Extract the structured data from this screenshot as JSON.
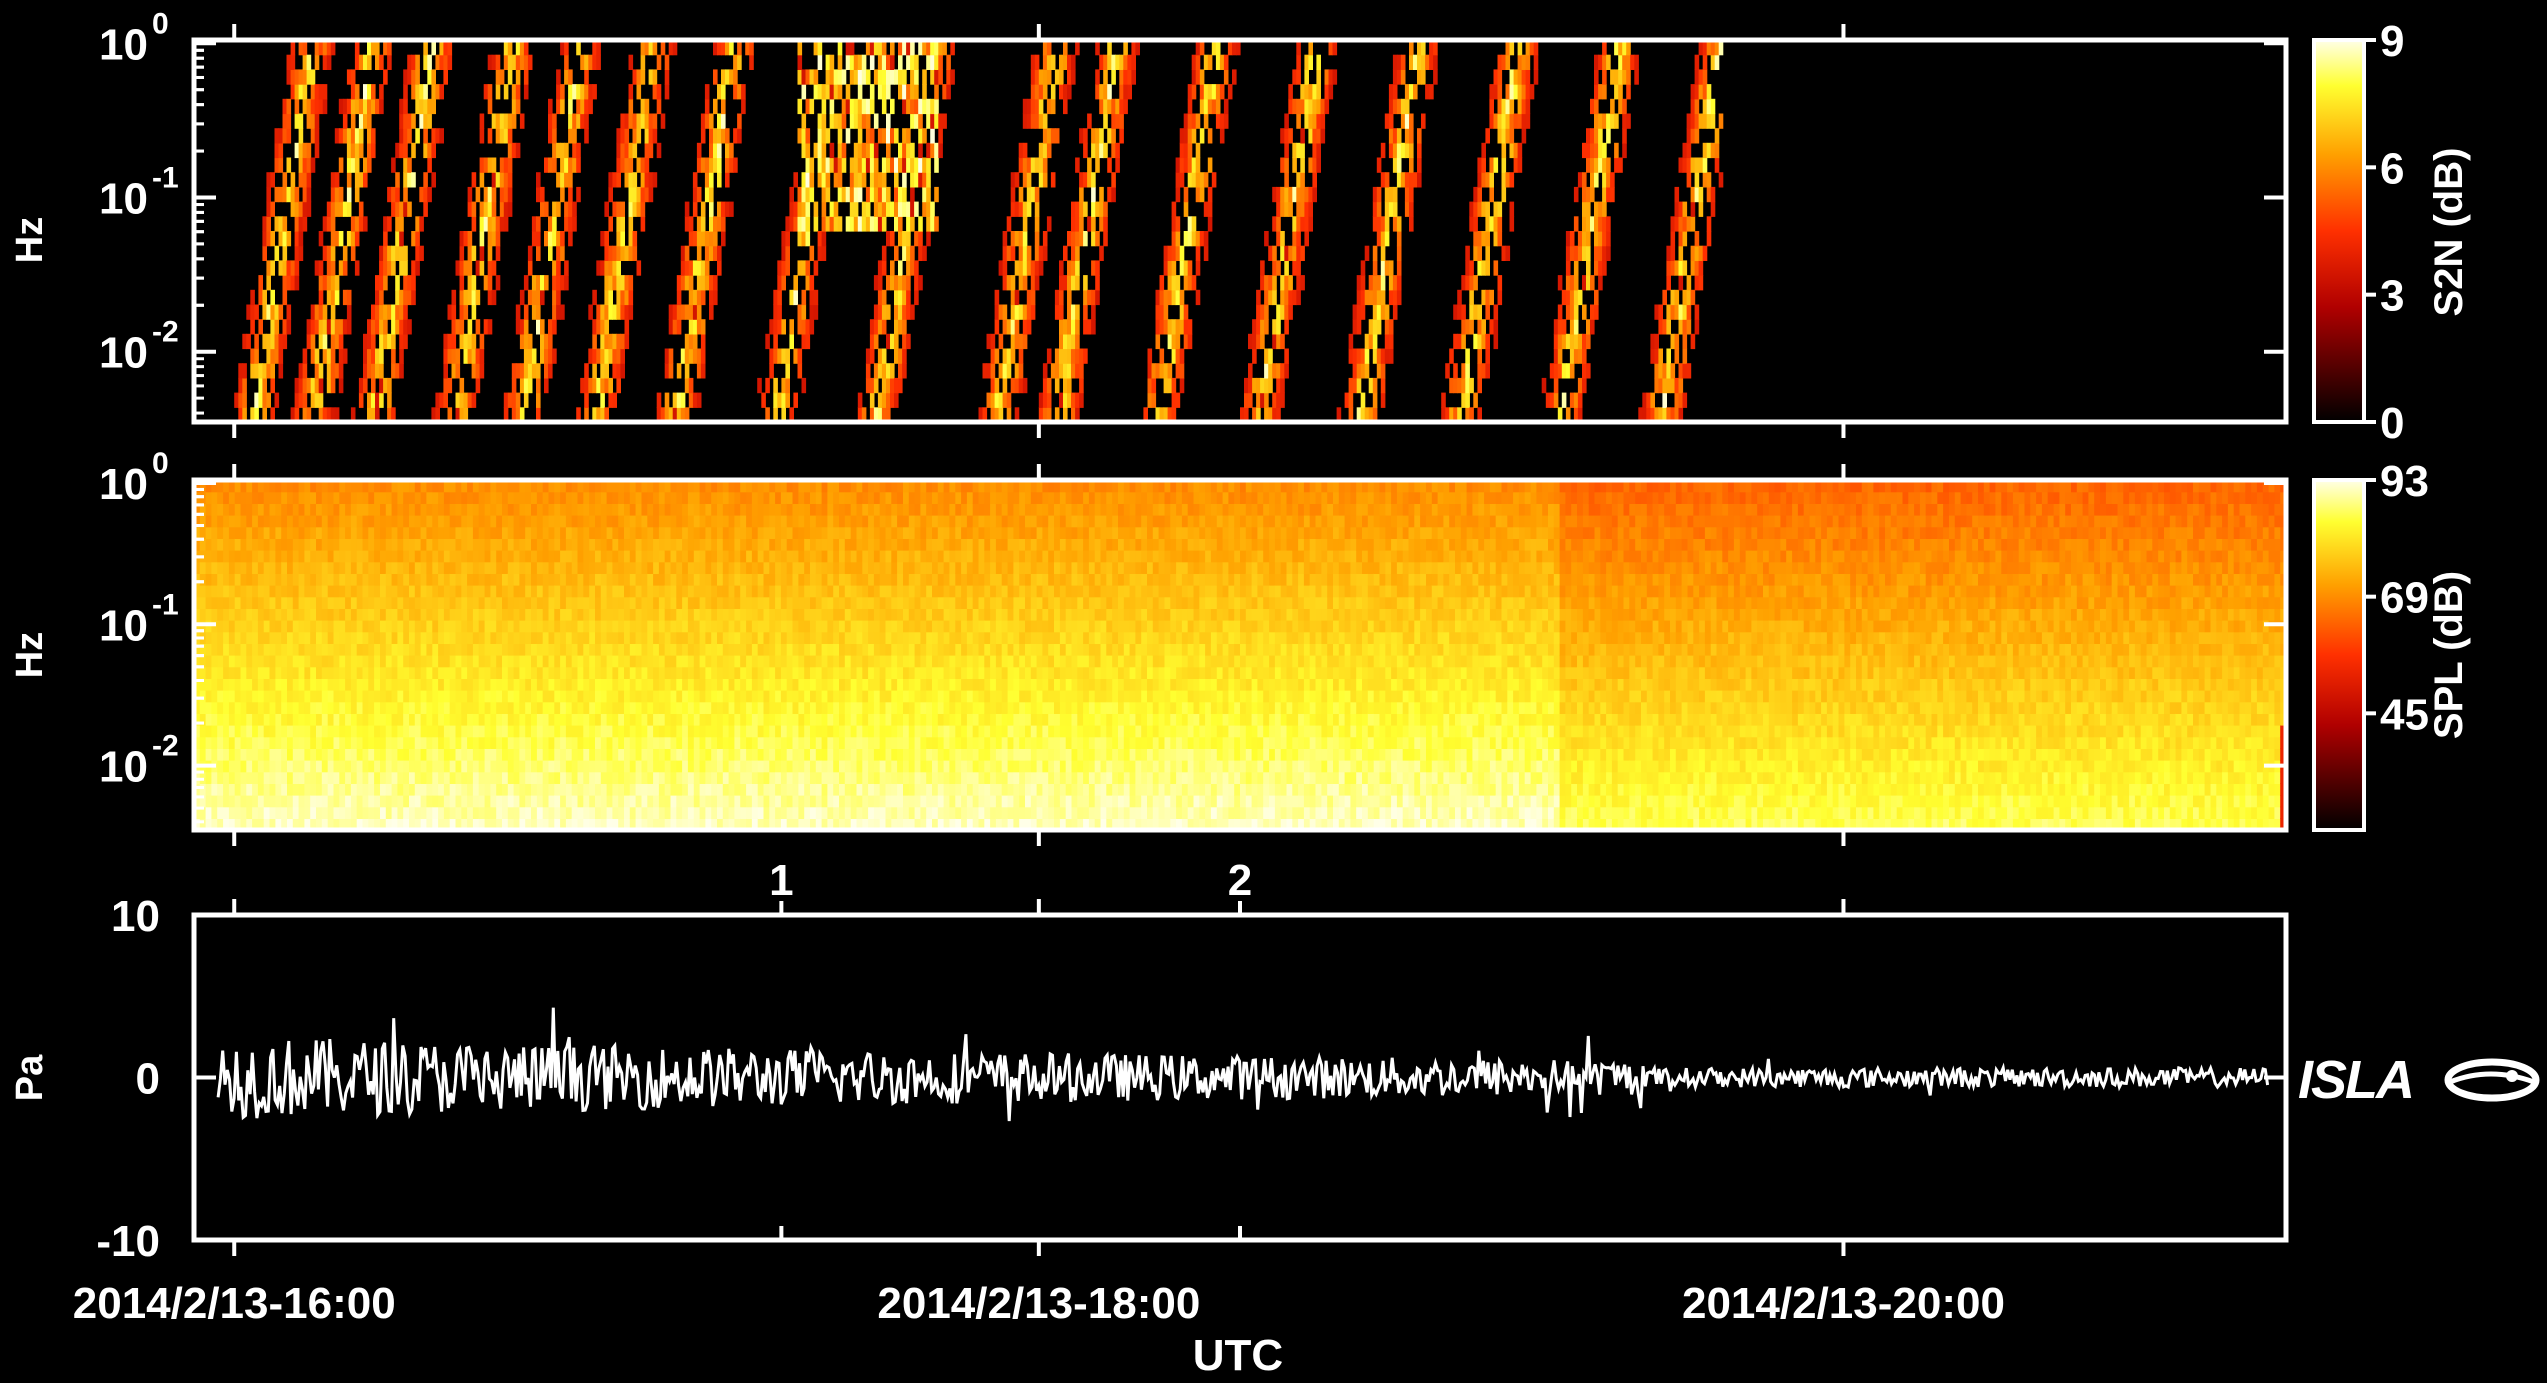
{
  "chart_data": [
    {
      "type": "heatmap",
      "ylabel": "Hz",
      "yscale": "log",
      "ylim": [
        0.0035,
        1.05
      ],
      "yticks": [
        {
          "base": "10",
          "exp": "0"
        },
        {
          "base": "10",
          "exp": "-1"
        },
        {
          "base": "10",
          "exp": "-2"
        }
      ],
      "colorbar": {
        "label": "S2N (dB)",
        "range": [
          0,
          9
        ],
        "ticks": [
          "9",
          "6",
          "3",
          "0"
        ],
        "colormap": "black-red-orange-yellow-white"
      },
      "description_of_content": "Detection events up to ~1 Hz between 16:00 and ~19:40; quiet after"
    },
    {
      "type": "heatmap",
      "ylabel": "Hz",
      "yscale": "log",
      "ylim": [
        0.0035,
        1.05
      ],
      "yticks": [
        {
          "base": "10",
          "exp": "0"
        },
        {
          "base": "10",
          "exp": "-1"
        },
        {
          "base": "10",
          "exp": "-2"
        }
      ],
      "colorbar": {
        "label": "SPL (dB)",
        "range": [
          21,
          93
        ],
        "ticks": [
          "93",
          "69",
          "45"
        ],
        "colormap": "black-red-orange-yellow-white"
      }
    },
    {
      "type": "line",
      "ylabel": "Pa",
      "ylim": [
        -10,
        10
      ],
      "yticks": [
        "10",
        "0",
        "-10"
      ],
      "xlabel": "UTC",
      "xlim_hours": [
        15.9,
        21.1
      ],
      "xticks": [
        {
          "hour": 16,
          "label": "2014/2/13-16:00"
        },
        {
          "hour": 18,
          "label": "2014/2/13-18:00"
        },
        {
          "hour": 20,
          "label": "2014/2/13-20:00"
        }
      ],
      "markers": [
        {
          "hour": 17.36,
          "label": "1"
        },
        {
          "hour": 18.5,
          "label": "2"
        }
      ],
      "series": [
        {
          "values_desc": "pressure waveform, amplitude decreasing over time"
        }
      ]
    }
  ],
  "logo": {
    "text": "ISLA"
  },
  "colors": {
    "background": "#000000",
    "axes": "#ffffff",
    "waveform": "#ffffff"
  }
}
